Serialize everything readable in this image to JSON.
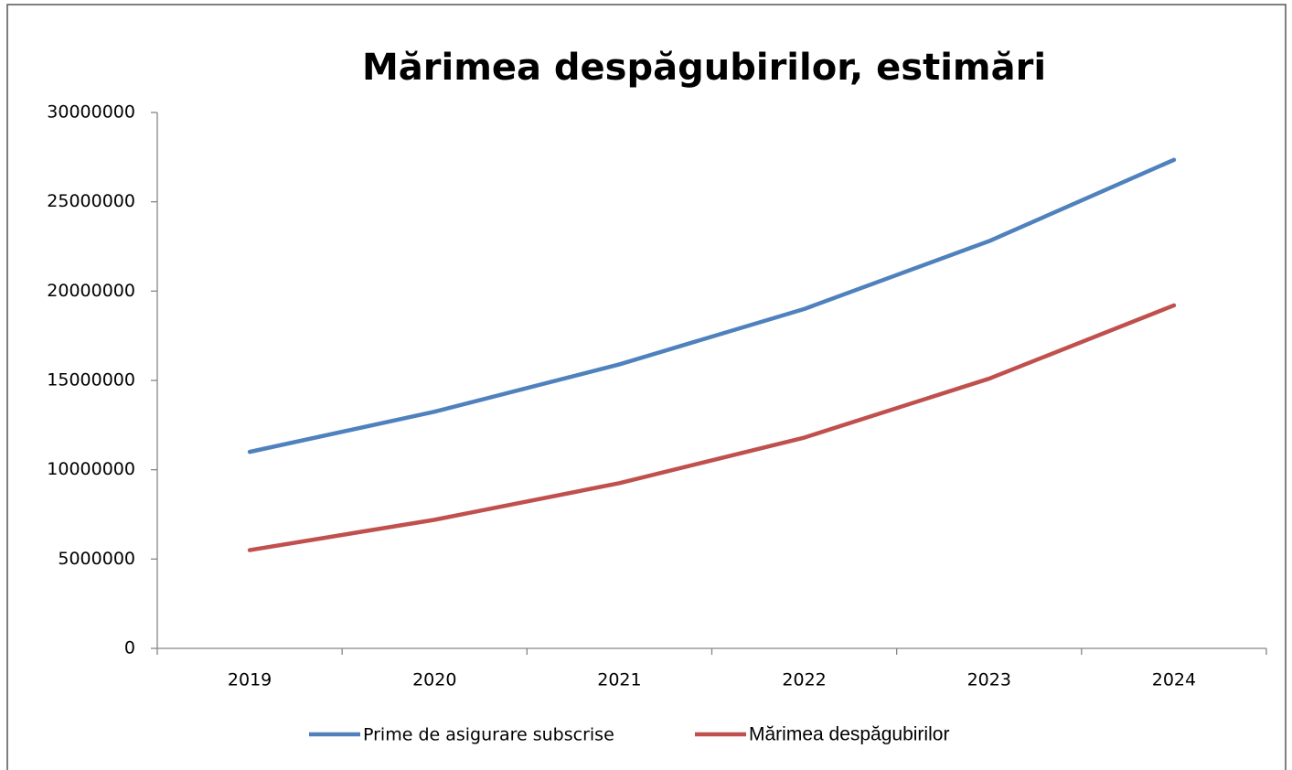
{
  "chart_data": {
    "type": "line",
    "title": "Mărimea despăgubirilor, estimări",
    "categories": [
      "2019",
      "2020",
      "2021",
      "2022",
      "2023",
      "2024"
    ],
    "series": [
      {
        "name": "Prime de asigurare subscrise",
        "color": "#4f81bd",
        "values": [
          11000000,
          13250000,
          15900000,
          19000000,
          22800000,
          27350000
        ]
      },
      {
        "name": "Mărimea despăgubirilor",
        "color": "#c0504d",
        "values": [
          5500000,
          7200000,
          9250000,
          11800000,
          15100000,
          19200000
        ]
      }
    ],
    "ylim": [
      0,
      30000000
    ],
    "yticks": [
      0,
      5000000,
      10000000,
      15000000,
      20000000,
      25000000,
      30000000
    ],
    "grid": false,
    "legend": "bottom"
  }
}
